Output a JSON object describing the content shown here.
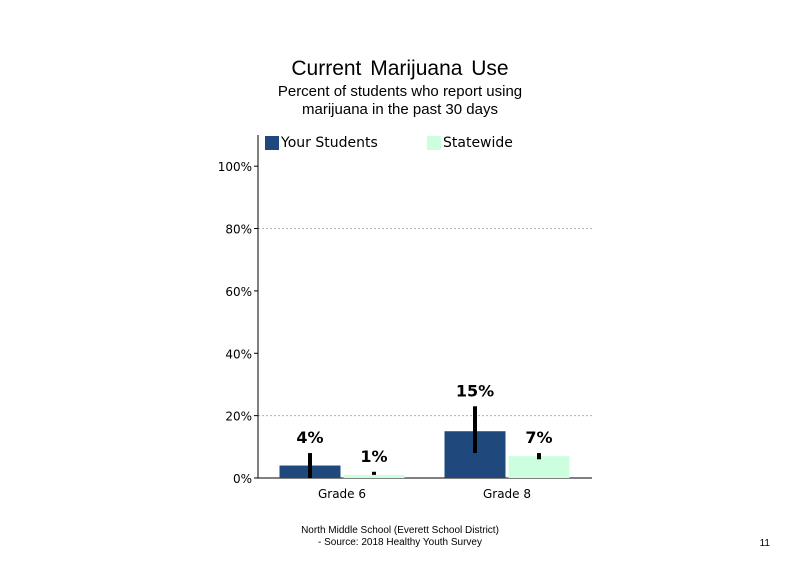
{
  "title": "Current  Marijuana  Use",
  "subtitle": "Percent of students who report using marijuana in the past 30 days",
  "footer": {
    "line1": "North Middle School (Everett School District)",
    "line2": "- Source: 2018 Healthy Youth Survey"
  },
  "page_number": "11",
  "chart_data": {
    "type": "bar",
    "categories": [
      "Grade 6",
      "Grade 8"
    ],
    "series": [
      {
        "name": "Your Students",
        "color": "#1f497d",
        "values": [
          4,
          15
        ],
        "labels": [
          "4%",
          "15%"
        ],
        "error_low": [
          0,
          8
        ],
        "error_high": [
          8,
          23
        ]
      },
      {
        "name": "Statewide",
        "color": "#ccffdd",
        "values": [
          1,
          7
        ],
        "labels": [
          "1%",
          "7%"
        ],
        "error_low": [
          1,
          6
        ],
        "error_high": [
          2,
          8
        ]
      }
    ],
    "yticks": [
      "0%",
      "20%",
      "40%",
      "60%",
      "80%",
      "100%"
    ],
    "ylim": [
      0,
      110
    ],
    "grid_lines_at": [
      20,
      80
    ],
    "legend_position": "top"
  }
}
